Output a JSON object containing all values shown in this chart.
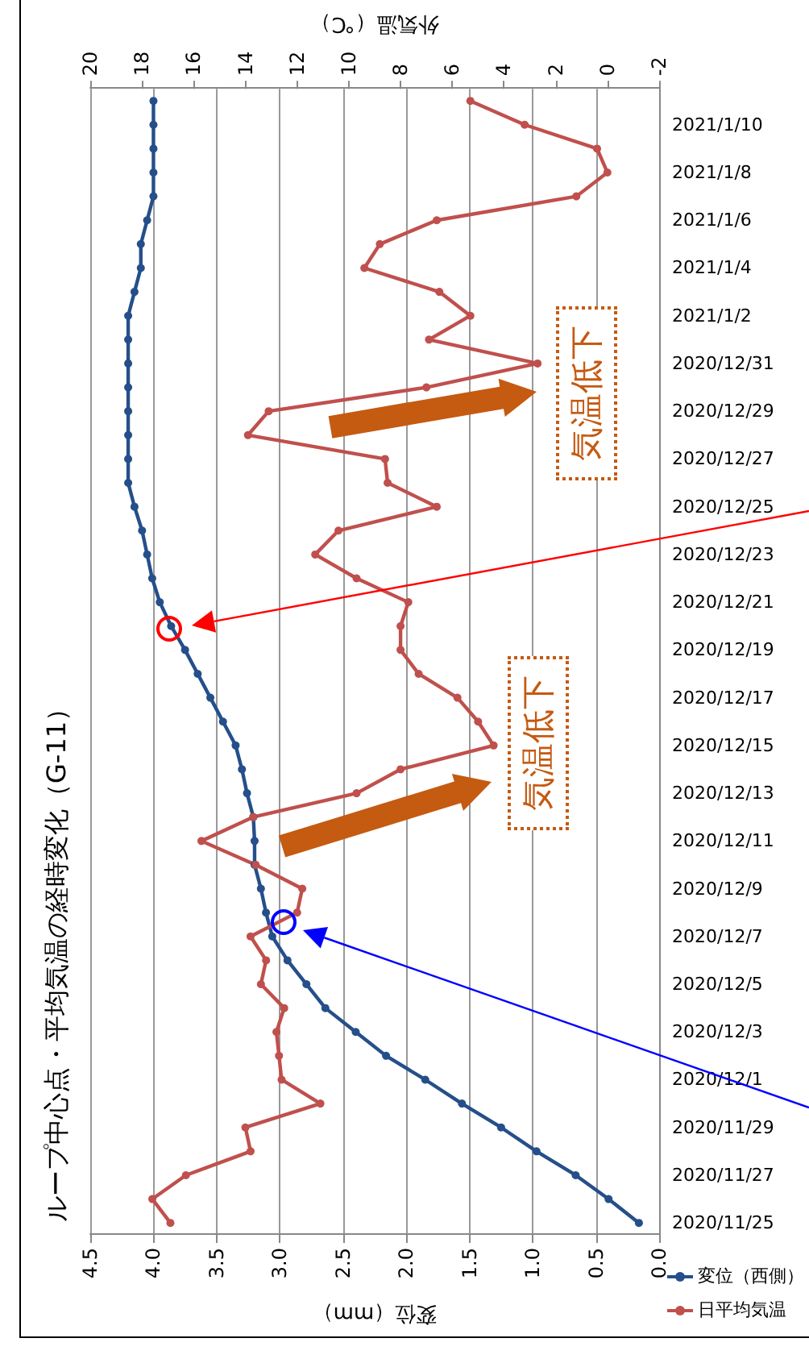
{
  "chart_data": {
    "type": "line",
    "orientation": "horizontal",
    "title": "ループ中心点・平均気温の経時変化（G-11）",
    "xlabel": "変位（mm）",
    "x2label": "外気温（℃）",
    "categories": [
      null,
      "2021/1/10",
      null,
      "2021/1/8",
      null,
      "2021/1/6",
      null,
      "2021/1/4",
      null,
      "2021/1/2",
      null,
      "2020/12/31",
      null,
      "2020/12/29",
      null,
      "2020/12/27",
      null,
      "2020/12/25",
      null,
      "2020/12/23",
      null,
      "2020/12/21",
      null,
      "2020/12/19",
      null,
      "2020/12/17",
      null,
      "2020/12/15",
      null,
      "2020/12/13",
      null,
      "2020/12/11",
      null,
      "2020/12/9",
      null,
      "2020/12/7",
      null,
      "2020/12/5",
      null,
      "2020/12/3",
      null,
      "2020/12/1",
      null,
      "2020/11/29",
      null,
      "2020/11/27",
      null,
      "2020/11/25"
    ],
    "series": [
      {
        "name": "変位（西側）",
        "color": "#254f8a",
        "values": [
          4.0,
          4.0,
          4.0,
          4.0,
          4.0,
          4.05,
          4.1,
          4.1,
          4.15,
          4.2,
          4.2,
          4.2,
          4.2,
          4.2,
          4.2,
          4.2,
          4.2,
          4.15,
          4.09,
          4.05,
          4.01,
          3.95,
          3.86,
          3.75,
          3.65,
          3.55,
          3.45,
          3.35,
          3.3,
          3.26,
          3.21,
          3.2,
          3.2,
          3.15,
          3.11,
          3.06,
          2.94,
          2.79,
          2.64,
          2.4,
          2.16,
          1.85,
          1.56,
          1.25,
          0.97,
          0.66,
          0.4,
          0.16
        ]
      },
      {
        "name": "日平均気温",
        "color": "#c0504d",
        "axis": "x2",
        "values": [
          5.3,
          3.2,
          0.4,
          0.0,
          1.2,
          6.6,
          8.8,
          9.4,
          6.5,
          5.3,
          6.9,
          2.7,
          7.0,
          13.1,
          13.9,
          8.6,
          8.5,
          6.6,
          10.4,
          11.3,
          9.7,
          7.7,
          8.0,
          8.0,
          7.3,
          5.8,
          5.0,
          4.4,
          8.0,
          9.7,
          13.7,
          15.7,
          13.6,
          11.8,
          12.0,
          13.8,
          13.2,
          13.4,
          12.5,
          12.8,
          12.7,
          12.6,
          11.1,
          14.0,
          13.8,
          16.3,
          17.6,
          16.9
        ]
      }
    ],
    "xlim": [
      4.5,
      0
    ],
    "xticks": [
      {
        "value": 4.5,
        "label": "4.5"
      },
      {
        "value": 4,
        "label": "4.0"
      },
      {
        "value": 3.5,
        "label": "3.5"
      },
      {
        "value": 3,
        "label": "3.0"
      },
      {
        "value": 2.5,
        "label": "2.5"
      },
      {
        "value": 2,
        "label": "2.0"
      },
      {
        "value": 1.5,
        "label": "1.5"
      },
      {
        "value": 1,
        "label": "1.0"
      },
      {
        "value": 0.5,
        "label": "0.5"
      },
      {
        "value": 0,
        "label": "0.0"
      }
    ],
    "x2lim": [
      20,
      -2
    ],
    "x2ticks": [
      20,
      18,
      16,
      14,
      12,
      10,
      8,
      6,
      4,
      2,
      0,
      -2
    ],
    "annotations": [
      "気温低下",
      "気温低下"
    ],
    "grid": "x",
    "legend": "bottom right",
    "marker": "circle",
    "line_style": "solid"
  }
}
